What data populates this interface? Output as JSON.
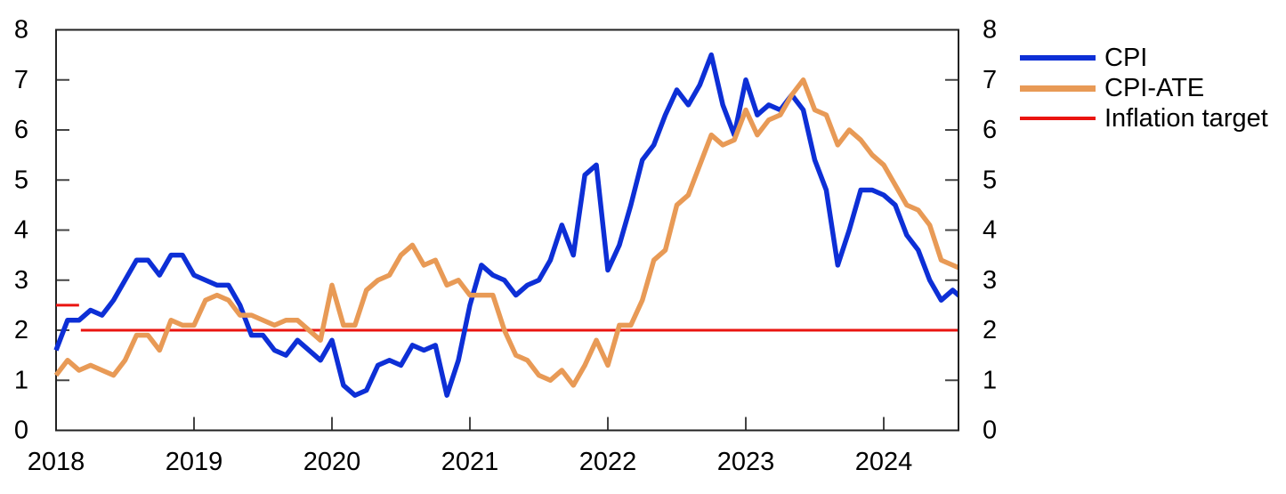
{
  "page": {
    "background": "#ffffff"
  },
  "legend": {
    "position": "top-right",
    "items": [
      {
        "label": "CPI",
        "color": "#0d2fd6"
      },
      {
        "label": "CPI-ATE",
        "color": "#e89a56"
      },
      {
        "label": "Inflation target",
        "color": "#ea1410"
      }
    ]
  },
  "chart_data": {
    "type": "line",
    "title": "",
    "xlabel": "",
    "ylabel": "",
    "ylim": [
      0,
      8
    ],
    "y_ticks": [
      0,
      1,
      2,
      3,
      4,
      5,
      6,
      7,
      8
    ],
    "y_axis_sides": "both",
    "grid": false,
    "x_tick_labels": [
      "2018",
      "2019",
      "2020",
      "2021",
      "2022",
      "2023",
      "2024"
    ],
    "x_unit": "month",
    "categories": [
      "2018-01",
      "2018-02",
      "2018-03",
      "2018-04",
      "2018-05",
      "2018-06",
      "2018-07",
      "2018-08",
      "2018-09",
      "2018-10",
      "2018-11",
      "2018-12",
      "2019-01",
      "2019-02",
      "2019-03",
      "2019-04",
      "2019-05",
      "2019-06",
      "2019-07",
      "2019-08",
      "2019-09",
      "2019-10",
      "2019-11",
      "2019-12",
      "2020-01",
      "2020-02",
      "2020-03",
      "2020-04",
      "2020-05",
      "2020-06",
      "2020-07",
      "2020-08",
      "2020-09",
      "2020-10",
      "2020-11",
      "2020-12",
      "2021-01",
      "2021-02",
      "2021-03",
      "2021-04",
      "2021-05",
      "2021-06",
      "2021-07",
      "2021-08",
      "2021-09",
      "2021-10",
      "2021-11",
      "2021-12",
      "2022-01",
      "2022-02",
      "2022-03",
      "2022-04",
      "2022-05",
      "2022-06",
      "2022-07",
      "2022-08",
      "2022-09",
      "2022-10",
      "2022-11",
      "2022-12",
      "2023-01",
      "2023-02",
      "2023-03",
      "2023-04",
      "2023-05",
      "2023-06",
      "2023-07",
      "2023-08",
      "2023-09",
      "2023-10",
      "2023-11",
      "2023-12",
      "2024-01",
      "2024-02",
      "2024-03",
      "2024-04",
      "2024-05",
      "2024-06",
      "2024-07",
      "2024-08"
    ],
    "series": [
      {
        "name": "CPI",
        "color": "#0d2fd6",
        "values": [
          1.6,
          2.2,
          2.2,
          2.4,
          2.3,
          2.6,
          3.0,
          3.4,
          3.4,
          3.1,
          3.5,
          3.5,
          3.1,
          3.0,
          2.9,
          2.9,
          2.5,
          1.9,
          1.9,
          1.6,
          1.5,
          1.8,
          1.6,
          1.4,
          1.8,
          0.9,
          0.7,
          0.8,
          1.3,
          1.4,
          1.3,
          1.7,
          1.6,
          1.7,
          0.7,
          1.4,
          2.5,
          3.3,
          3.1,
          3.0,
          2.7,
          2.9,
          3.0,
          3.4,
          4.1,
          3.5,
          5.1,
          5.3,
          3.2,
          3.7,
          4.5,
          5.4,
          5.7,
          6.3,
          6.8,
          6.5,
          6.9,
          7.5,
          6.5,
          5.9,
          7.0,
          6.3,
          6.5,
          6.4,
          6.7,
          6.4,
          5.4,
          4.8,
          3.3,
          4.0,
          4.8,
          4.8,
          4.7,
          4.5,
          3.9,
          3.6,
          3.0,
          2.6,
          2.8,
          2.6
        ]
      },
      {
        "name": "CPI-ATE",
        "color": "#e89a56",
        "values": [
          1.1,
          1.4,
          1.2,
          1.3,
          1.2,
          1.1,
          1.4,
          1.9,
          1.9,
          1.6,
          2.2,
          2.1,
          2.1,
          2.6,
          2.7,
          2.6,
          2.3,
          2.3,
          2.2,
          2.1,
          2.2,
          2.2,
          2.0,
          1.8,
          2.9,
          2.1,
          2.1,
          2.8,
          3.0,
          3.1,
          3.5,
          3.7,
          3.3,
          3.4,
          2.9,
          3.0,
          2.7,
          2.7,
          2.7,
          2.0,
          1.5,
          1.4,
          1.1,
          1.0,
          1.2,
          0.9,
          1.3,
          1.8,
          1.3,
          2.1,
          2.1,
          2.6,
          3.4,
          3.6,
          4.5,
          4.7,
          5.3,
          5.9,
          5.7,
          5.8,
          6.4,
          5.9,
          6.2,
          6.3,
          6.7,
          7.0,
          6.4,
          6.3,
          5.7,
          6.0,
          5.8,
          5.5,
          5.3,
          4.9,
          4.5,
          4.4,
          4.1,
          3.4,
          3.3,
          3.2
        ]
      }
    ],
    "target_segments": [
      {
        "name": "Inflation target",
        "value": 2.5,
        "from": "2018-01",
        "to": "2018-03",
        "color": "#ea1410"
      },
      {
        "name": "Inflation target",
        "value": 2.0,
        "from": "2018-03",
        "to": "2024-08",
        "color": "#ea1410"
      }
    ],
    "legend_entries": [
      "CPI",
      "CPI-ATE",
      "Inflation target"
    ]
  }
}
